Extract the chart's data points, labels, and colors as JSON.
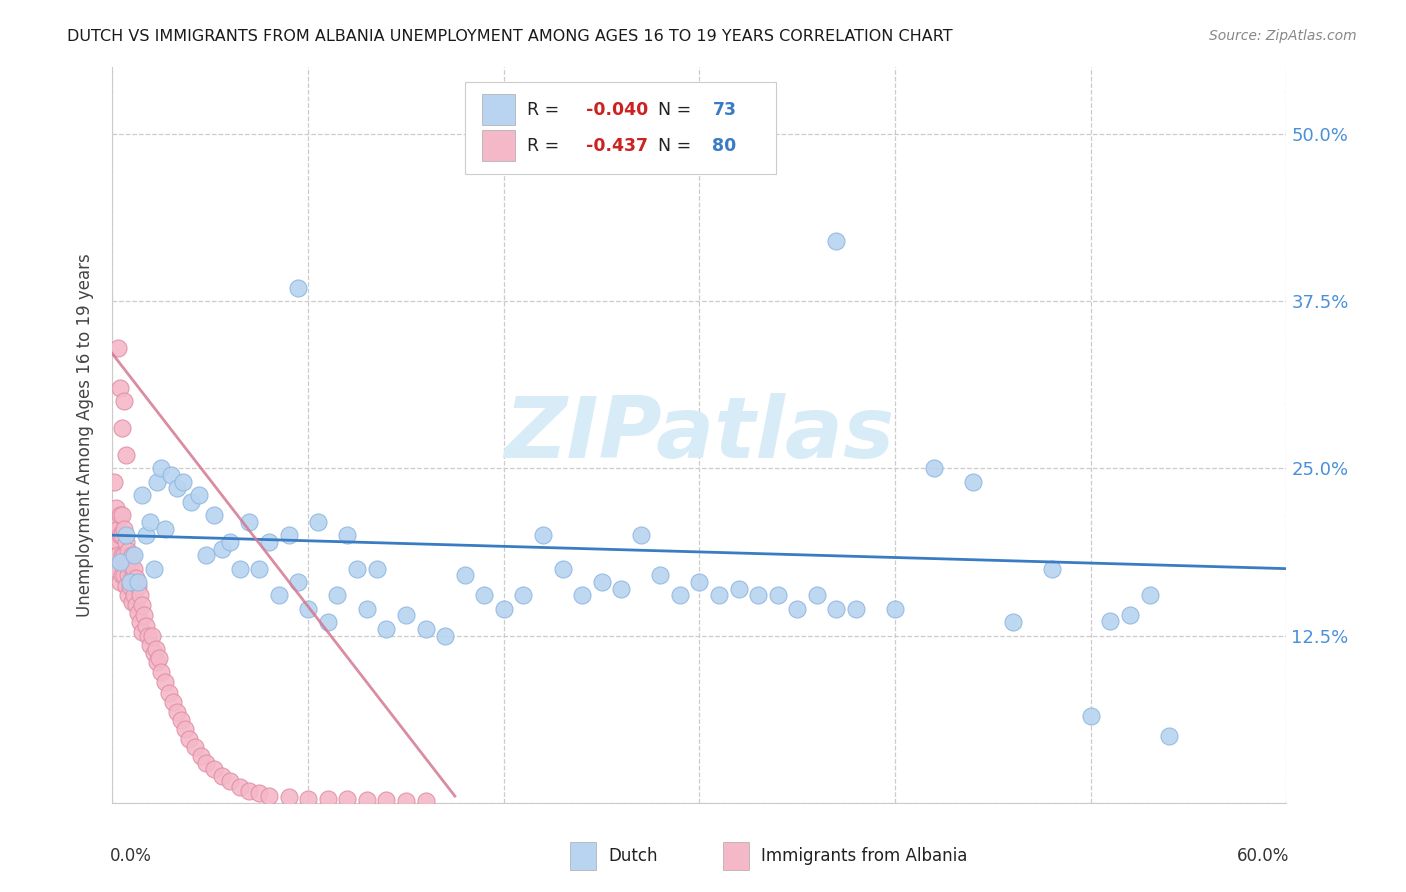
{
  "title": "DUTCH VS IMMIGRANTS FROM ALBANIA UNEMPLOYMENT AMONG AGES 16 TO 19 YEARS CORRELATION CHART",
  "source": "Source: ZipAtlas.com",
  "ylabel": "Unemployment Among Ages 16 to 19 years",
  "legend_dutch_r": "-0.040",
  "legend_dutch_n": "73",
  "legend_albania_r": "-0.437",
  "legend_albania_n": "80",
  "legend_label_dutch": "Dutch",
  "legend_label_albania": "Immigrants from Albania",
  "dutch_color": "#b8d4f0",
  "dutch_edge_color": "#90b8e0",
  "albania_color": "#f4b8c8",
  "albania_edge_color": "#e090a8",
  "trendline_dutch_color": "#3a7cc4",
  "trendline_albania_color": "#d47890",
  "watermark_color": "#d8ecf8",
  "xlim": [
    0.0,
    0.6
  ],
  "ylim": [
    0.0,
    0.55
  ],
  "right_yticks": [
    0.125,
    0.25,
    0.375,
    0.5
  ],
  "right_yticklabels": [
    "12.5%",
    "25.0%",
    "37.5%",
    "50.0%"
  ],
  "dutch_x": [
    0.004,
    0.007,
    0.009,
    0.011,
    0.013,
    0.015,
    0.017,
    0.019,
    0.021,
    0.023,
    0.025,
    0.027,
    0.03,
    0.033,
    0.036,
    0.04,
    0.044,
    0.048,
    0.052,
    0.056,
    0.06,
    0.065,
    0.07,
    0.075,
    0.08,
    0.085,
    0.09,
    0.095,
    0.1,
    0.105,
    0.11,
    0.115,
    0.12,
    0.125,
    0.13,
    0.135,
    0.14,
    0.15,
    0.16,
    0.17,
    0.18,
    0.19,
    0.2,
    0.21,
    0.22,
    0.23,
    0.24,
    0.25,
    0.26,
    0.27,
    0.28,
    0.29,
    0.3,
    0.31,
    0.32,
    0.33,
    0.34,
    0.35,
    0.36,
    0.37,
    0.38,
    0.4,
    0.42,
    0.44,
    0.46,
    0.48,
    0.5,
    0.51,
    0.52,
    0.53,
    0.54,
    0.095,
    0.37
  ],
  "dutch_y": [
    0.18,
    0.2,
    0.165,
    0.185,
    0.165,
    0.23,
    0.2,
    0.21,
    0.175,
    0.24,
    0.25,
    0.205,
    0.245,
    0.235,
    0.24,
    0.225,
    0.23,
    0.185,
    0.215,
    0.19,
    0.195,
    0.175,
    0.21,
    0.175,
    0.195,
    0.155,
    0.2,
    0.165,
    0.145,
    0.21,
    0.135,
    0.155,
    0.2,
    0.175,
    0.145,
    0.175,
    0.13,
    0.14,
    0.13,
    0.125,
    0.17,
    0.155,
    0.145,
    0.155,
    0.2,
    0.175,
    0.155,
    0.165,
    0.16,
    0.2,
    0.17,
    0.155,
    0.165,
    0.155,
    0.16,
    0.155,
    0.155,
    0.145,
    0.155,
    0.145,
    0.145,
    0.145,
    0.25,
    0.24,
    0.135,
    0.175,
    0.065,
    0.136,
    0.14,
    0.155,
    0.05,
    0.385,
    0.42
  ],
  "albania_x": [
    0.0005,
    0.001,
    0.001,
    0.002,
    0.002,
    0.002,
    0.003,
    0.003,
    0.003,
    0.004,
    0.004,
    0.004,
    0.005,
    0.005,
    0.005,
    0.005,
    0.006,
    0.006,
    0.006,
    0.007,
    0.007,
    0.007,
    0.008,
    0.008,
    0.008,
    0.009,
    0.009,
    0.01,
    0.01,
    0.01,
    0.011,
    0.011,
    0.012,
    0.012,
    0.013,
    0.013,
    0.014,
    0.014,
    0.015,
    0.015,
    0.016,
    0.017,
    0.018,
    0.019,
    0.02,
    0.021,
    0.022,
    0.023,
    0.024,
    0.025,
    0.027,
    0.029,
    0.031,
    0.033,
    0.035,
    0.037,
    0.039,
    0.042,
    0.045,
    0.048,
    0.052,
    0.056,
    0.06,
    0.065,
    0.07,
    0.075,
    0.08,
    0.09,
    0.1,
    0.11,
    0.12,
    0.13,
    0.14,
    0.15,
    0.16,
    0.003,
    0.004,
    0.005,
    0.006,
    0.007
  ],
  "albania_y": [
    0.21,
    0.24,
    0.2,
    0.22,
    0.19,
    0.175,
    0.205,
    0.195,
    0.185,
    0.215,
    0.2,
    0.165,
    0.215,
    0.2,
    0.185,
    0.17,
    0.205,
    0.185,
    0.17,
    0.195,
    0.178,
    0.162,
    0.188,
    0.17,
    0.155,
    0.178,
    0.162,
    0.185,
    0.168,
    0.15,
    0.175,
    0.155,
    0.168,
    0.148,
    0.162,
    0.142,
    0.155,
    0.135,
    0.148,
    0.128,
    0.14,
    0.132,
    0.125,
    0.118,
    0.125,
    0.112,
    0.115,
    0.105,
    0.108,
    0.098,
    0.09,
    0.082,
    0.075,
    0.068,
    0.062,
    0.055,
    0.048,
    0.042,
    0.035,
    0.03,
    0.025,
    0.02,
    0.016,
    0.012,
    0.009,
    0.007,
    0.005,
    0.004,
    0.003,
    0.003,
    0.003,
    0.002,
    0.002,
    0.001,
    0.001,
    0.34,
    0.31,
    0.28,
    0.3,
    0.26
  ],
  "dutch_trend_x": [
    0.0,
    0.6
  ],
  "dutch_trend_y": [
    0.2,
    0.175
  ],
  "albania_trend_x": [
    -0.005,
    0.175
  ],
  "albania_trend_y": [
    0.345,
    0.005
  ]
}
